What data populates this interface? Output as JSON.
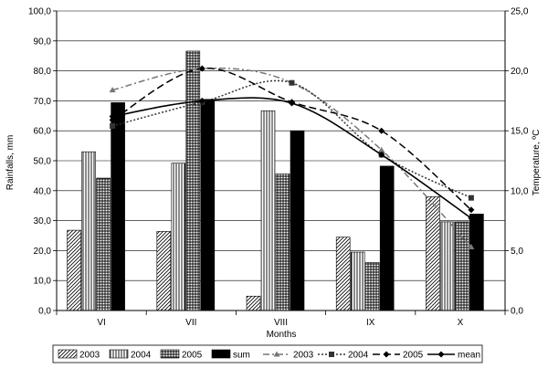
{
  "chart_data": {
    "type": "bar",
    "title": "",
    "xlabel": "Months",
    "ylabel": "Rainfalls, mm",
    "y2label": "Temperature, ºC",
    "categories": [
      "VI",
      "VII",
      "VIII",
      "IX",
      "X"
    ],
    "ylim": [
      0,
      100
    ],
    "y_ticks": [
      "0,0",
      "10,0",
      "20,0",
      "30,0",
      "40,0",
      "50,0",
      "60,0",
      "70,0",
      "80,0",
      "90,0",
      "100,0"
    ],
    "y2lim": [
      0,
      25
    ],
    "y2_ticks": [
      "0,0",
      "5,0",
      "10,0",
      "15,0",
      "20,0",
      "25,0"
    ],
    "grid": true,
    "legend_position": "bottom",
    "bar_series": [
      {
        "name": "2003",
        "pattern": "diagonal",
        "values": [
          26.8,
          26.4,
          4.8,
          24.5,
          38.0
        ]
      },
      {
        "name": "2004",
        "pattern": "vertical",
        "values": [
          53.0,
          49.2,
          66.7,
          19.5,
          29.6
        ]
      },
      {
        "name": "2005",
        "pattern": "grid",
        "values": [
          44.2,
          86.6,
          45.6,
          16.0,
          29.6
        ]
      },
      {
        "name": "sum",
        "pattern": "solid",
        "values": [
          69.4,
          70.5,
          60.0,
          48.2,
          32.2
        ]
      }
    ],
    "line_series": [
      {
        "name": "2003",
        "style": "dash-dot",
        "marker": "triangle",
        "color": "#777777",
        "values": [
          18.4,
          20.2,
          19.0,
          13.4,
          5.3
        ]
      },
      {
        "name": "2004",
        "style": "dotted",
        "marker": "square",
        "color": "#333333",
        "values": [
          15.4,
          17.4,
          19.0,
          13.0,
          9.4
        ]
      },
      {
        "name": "2005",
        "style": "dashed",
        "marker": "diamond",
        "color": "#000000",
        "values": [
          15.9,
          20.2,
          17.4,
          15.0,
          8.4
        ]
      },
      {
        "name": "mean",
        "style": "solid",
        "marker": "diamond",
        "color": "#000000",
        "values": [
          16.2,
          17.5,
          17.3,
          13.0,
          7.7
        ]
      }
    ]
  }
}
